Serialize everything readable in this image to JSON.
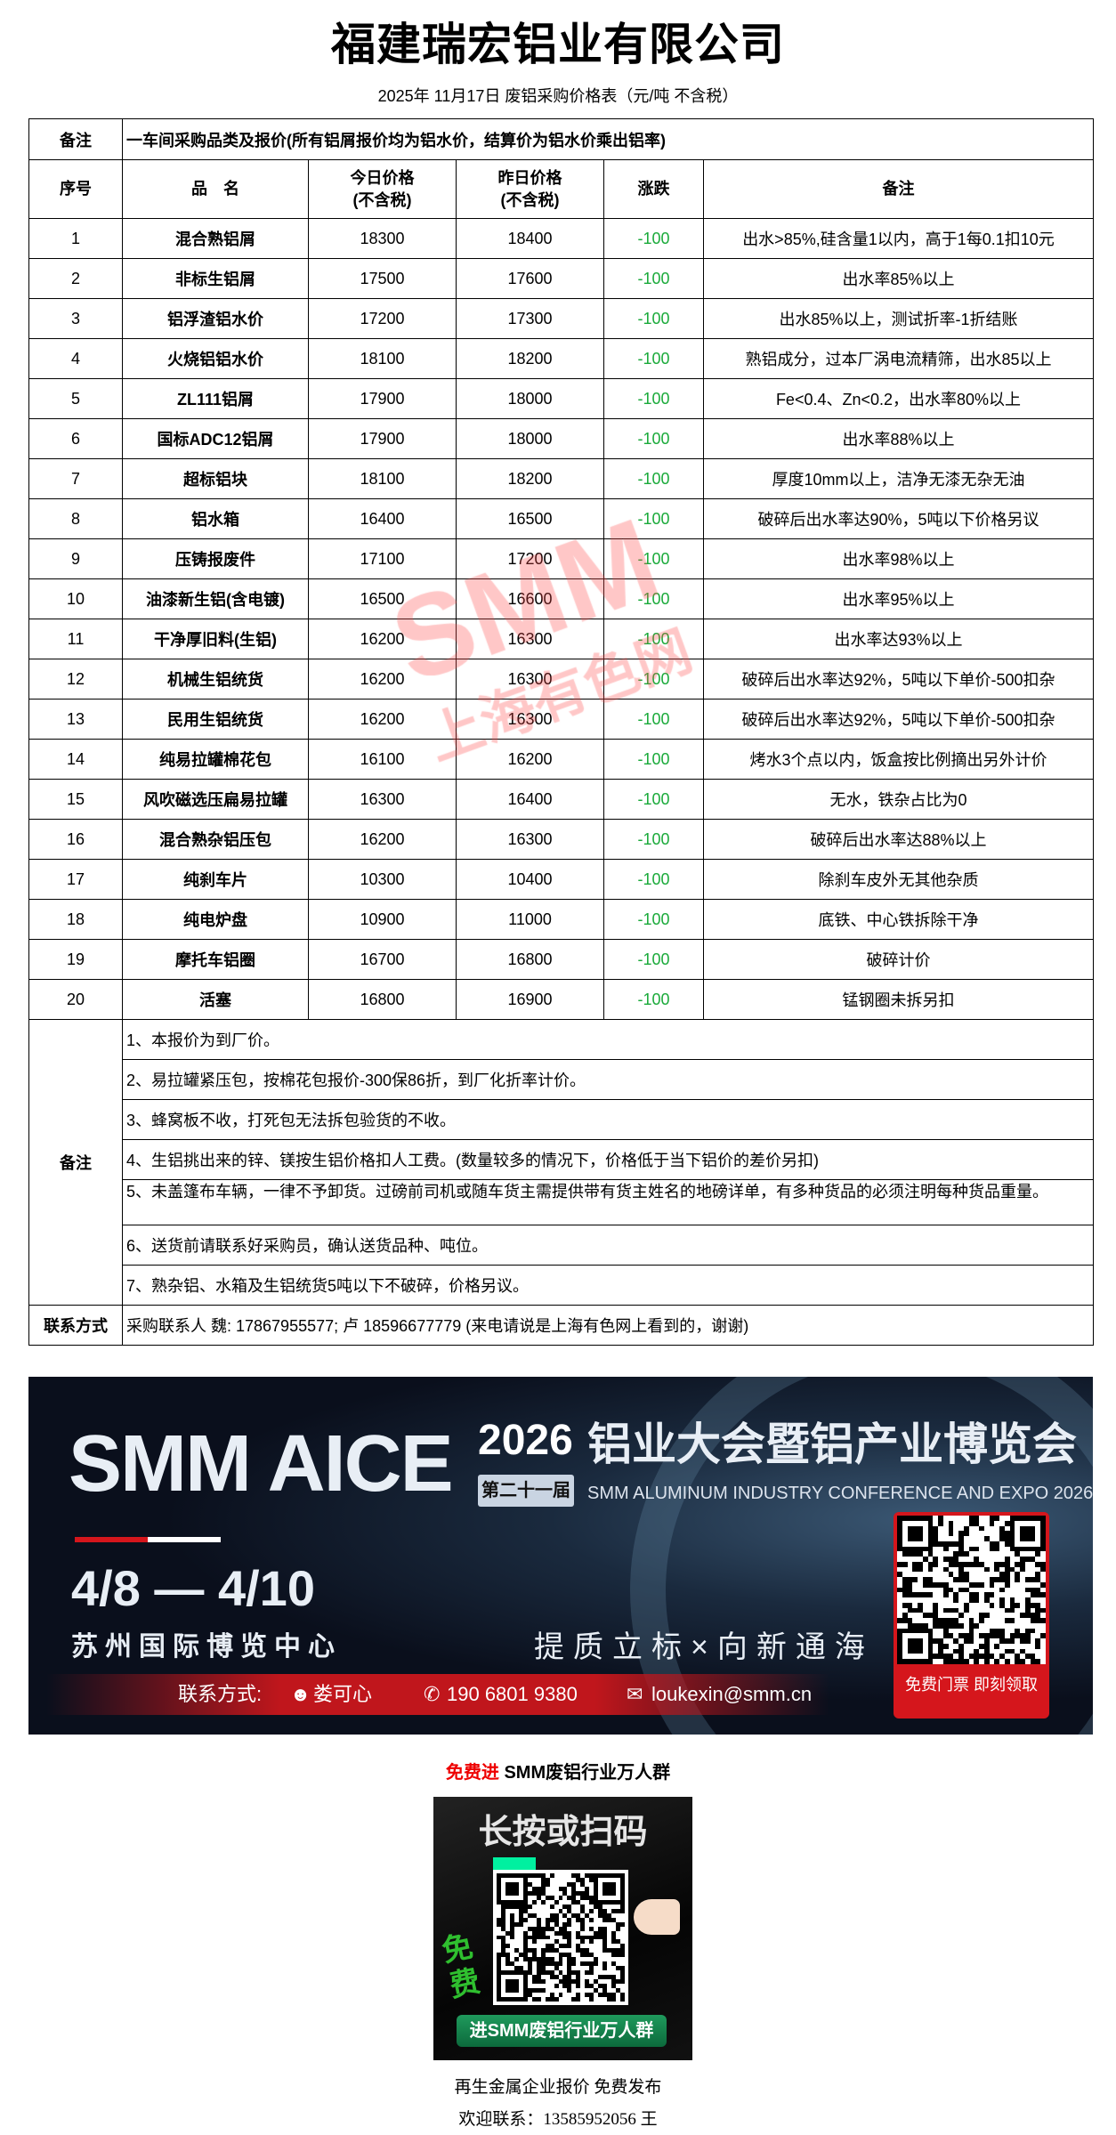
{
  "header": {
    "title": "福建瑞宏铝业有限公司",
    "subtitle": "2025年 11月17日 废铝采购价格表（元/吨  不含税）"
  },
  "intro": {
    "label": "备注",
    "text": "一车间采购品类及报价(所有铝屑报价均为铝水价，结算价为铝水价乘出铝率)"
  },
  "columns": [
    "序号",
    "品　名",
    "今日价格\n(不含税)",
    "昨日价格\n(不含税)",
    "涨跌",
    "备注"
  ],
  "rows": [
    {
      "no": "1",
      "name": "混合熟铝屑",
      "today": "18300",
      "yesterday": "18400",
      "change": "-100",
      "note": "出水>85%,硅含量1以内，高于1每0.1扣10元"
    },
    {
      "no": "2",
      "name": "非标生铝屑",
      "today": "17500",
      "yesterday": "17600",
      "change": "-100",
      "note": "出水率85%以上"
    },
    {
      "no": "3",
      "name": "铝浮渣铝水价",
      "today": "17200",
      "yesterday": "17300",
      "change": "-100",
      "note": "出水85%以上，测试折率-1折结账"
    },
    {
      "no": "4",
      "name": "火烧铝铝水价",
      "today": "18100",
      "yesterday": "18200",
      "change": "-100",
      "note": "熟铝成分，过本厂涡电流精筛，出水85以上"
    },
    {
      "no": "5",
      "name": "ZL111铝屑",
      "today": "17900",
      "yesterday": "18000",
      "change": "-100",
      "note": "Fe<0.4、Zn<0.2，出水率80%以上"
    },
    {
      "no": "6",
      "name": "国标ADC12铝屑",
      "today": "17900",
      "yesterday": "18000",
      "change": "-100",
      "note": "出水率88%以上"
    },
    {
      "no": "7",
      "name": "超标铝块",
      "today": "18100",
      "yesterday": "18200",
      "change": "-100",
      "note": "厚度10mm以上，洁净无漆无杂无油"
    },
    {
      "no": "8",
      "name": "铝水箱",
      "today": "16400",
      "yesterday": "16500",
      "change": "-100",
      "note": "破碎后出水率达90%，5吨以下价格另议"
    },
    {
      "no": "9",
      "name": "压铸报废件",
      "today": "17100",
      "yesterday": "17200",
      "change": "-100",
      "note": "出水率98%以上"
    },
    {
      "no": "10",
      "name": "油漆新生铝(含电镀)",
      "today": "16500",
      "yesterday": "16600",
      "change": "-100",
      "note": "出水率95%以上"
    },
    {
      "no": "11",
      "name": "干净厚旧料(生铝)",
      "today": "16200",
      "yesterday": "16300",
      "change": "-100",
      "note": "出水率达93%以上"
    },
    {
      "no": "12",
      "name": "机械生铝统货",
      "today": "16200",
      "yesterday": "16300",
      "change": "-100",
      "note": "破碎后出水率达92%，5吨以下单价-500扣杂"
    },
    {
      "no": "13",
      "name": "民用生铝统货",
      "today": "16200",
      "yesterday": "16300",
      "change": "-100",
      "note": "破碎后出水率达92%，5吨以下单价-500扣杂"
    },
    {
      "no": "14",
      "name": "纯易拉罐棉花包",
      "today": "16100",
      "yesterday": "16200",
      "change": "-100",
      "note": "烤水3个点以内，饭盒按比例摘出另外计价"
    },
    {
      "no": "15",
      "name": "风吹磁选压扁易拉罐",
      "today": "16300",
      "yesterday": "16400",
      "change": "-100",
      "note": "无水，铁杂占比为0"
    },
    {
      "no": "16",
      "name": "混合熟杂铝压包",
      "today": "16200",
      "yesterday": "16300",
      "change": "-100",
      "note": "破碎后出水率达88%以上"
    },
    {
      "no": "17",
      "name": "纯刹车片",
      "today": "10300",
      "yesterday": "10400",
      "change": "-100",
      "note": "除刹车皮外无其他杂质"
    },
    {
      "no": "18",
      "name": "纯电炉盘",
      "today": "10900",
      "yesterday": "11000",
      "change": "-100",
      "note": "底铁、中心铁拆除干净"
    },
    {
      "no": "19",
      "name": "摩托车铝圈",
      "today": "16700",
      "yesterday": "16800",
      "change": "-100",
      "note": "破碎计价"
    },
    {
      "no": "20",
      "name": "活塞",
      "today": "16800",
      "yesterday": "16900",
      "change": "-100",
      "note": "锰钢圈未拆另扣"
    }
  ],
  "notes": {
    "label": "备注",
    "items": [
      "1、本报价为到厂价。",
      "2、易拉罐紧压包，按棉花包报价-300保86折，到厂化折率计价。",
      "3、蜂窝板不收，打死包无法拆包验货的不收。",
      "4、生铝挑出来的锌、镁按生铝价格扣人工费。(数量较多的情况下，价格低于当下铝价的差价另扣)",
      "5、未盖篷布车辆，一律不予卸货。过磅前司机或随车货主需提供带有货主姓名的地磅详单，有多种货品的必须注明每种货品重量。",
      "6、送货前请联系好采购员，确认送货品种、吨位。",
      "7、熟杂铝、水箱及生铝统货5吨以下不破碎，价格另议。"
    ]
  },
  "contact": {
    "label": "联系方式",
    "text": "采购联系人 魏: 17867955577; 卢 18596677779 (来电请说是上海有色网上看到的，谢谢)"
  },
  "watermark": {
    "line1": "SMM",
    "line2": "上海有色网",
    "color": "#ff4646"
  },
  "banner": {
    "brand": "SMM AICE",
    "year": "2026",
    "edition": "第二十一届",
    "title_cn": "铝业大会暨铝产业博览会",
    "title_en": "SMM ALUMINUM INDUSTRY CONFERENCE AND EXPO 2026",
    "dates": "4/8 — 4/10",
    "venue": "苏州国际博览中心",
    "slogan": "提质立标×向新通海",
    "contact_label": "联系方式:",
    "contact_name": "娄可心",
    "contact_phone": "190 6801 9380",
    "contact_email": "loukexin@smm.cn",
    "qr_label": "免费门票 即刻领取",
    "accent": "#d5161c"
  },
  "group": {
    "prefix": "免费进",
    "title": " SMM废铝行业万人群",
    "poster_heading": "长按或扫码",
    "poster_free": "免费",
    "poster_button": "进SMM废铝行业万人群"
  },
  "footer": {
    "line1": "再生金属企业报价  免费发布",
    "line2": "欢迎联系：13585952056  王"
  }
}
